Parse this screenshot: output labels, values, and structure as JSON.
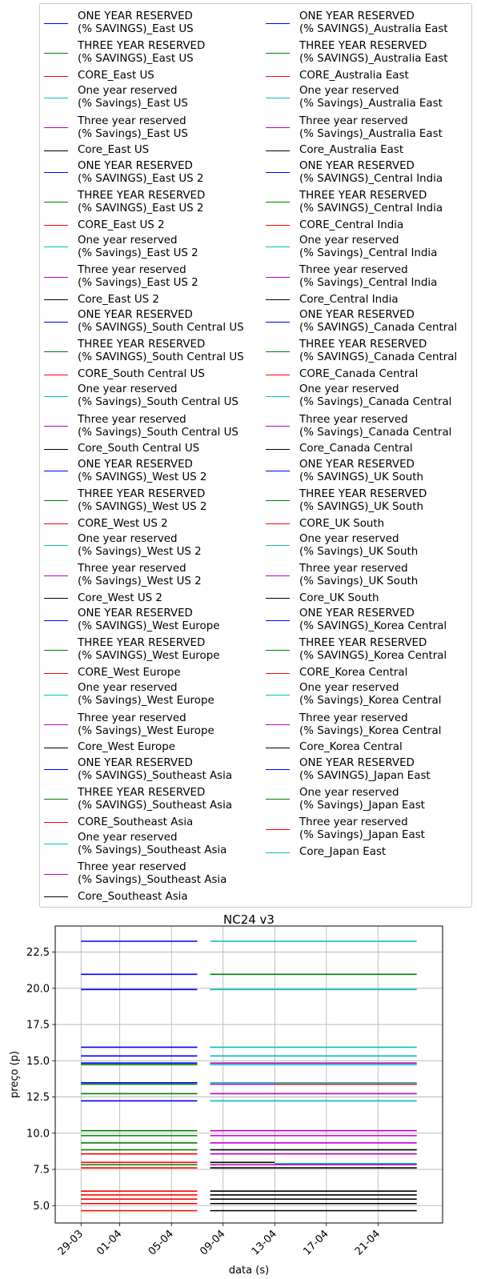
{
  "chart_data": {
    "type": "line",
    "title": "NC24 v3",
    "xlabel": "data (s)",
    "ylabel": "preço (p)",
    "ylim": [
      3.8,
      24.3
    ],
    "yticks": [
      5.0,
      7.5,
      10.0,
      12.5,
      15.0,
      17.5,
      20.0,
      22.5
    ],
    "ytick_labels": [
      "5.0",
      "7.5",
      "10.0",
      "12.5",
      "15.0",
      "17.5",
      "20.0",
      "22.5"
    ],
    "xlim": [
      "2018-03-27",
      "2018-04-26"
    ],
    "xticks": [
      "2018-03-29",
      "2018-04-01",
      "2018-04-05",
      "2018-04-09",
      "2018-04-13",
      "2018-04-17",
      "2018-04-21"
    ],
    "xtick_labels": [
      "29-03",
      "01-04",
      "05-04",
      "09-04",
      "13-04",
      "17-04",
      "21-04"
    ],
    "grid": true,
    "legend_position": "top",
    "legend_columns": 2,
    "colors": {
      "b": "#0000ff",
      "g": "#008000",
      "r": "#ff0000",
      "c": "#00bfbf",
      "m": "#bf00bf",
      "k": "#000000"
    },
    "segments": [
      {
        "color": "b",
        "y": 23.25,
        "x": [
          "2018-03-29",
          "2018-04-07"
        ]
      },
      {
        "color": "b",
        "y": 20.97,
        "x": [
          "2018-03-29",
          "2018-04-07"
        ]
      },
      {
        "color": "b",
        "y": 19.92,
        "x": [
          "2018-03-29",
          "2018-04-07"
        ]
      },
      {
        "color": "b",
        "y": 15.93,
        "x": [
          "2018-03-29",
          "2018-04-07"
        ]
      },
      {
        "color": "b",
        "y": 15.33,
        "x": [
          "2018-03-29",
          "2018-04-07"
        ]
      },
      {
        "color": "b",
        "y": 14.84,
        "x": [
          "2018-03-29",
          "2018-04-07"
        ]
      },
      {
        "color": "g",
        "y": 14.73,
        "x": [
          "2018-03-29",
          "2018-04-07"
        ]
      },
      {
        "color": "b",
        "y": 13.48,
        "x": [
          "2018-03-29",
          "2018-04-07"
        ]
      },
      {
        "color": "g",
        "y": 13.38,
        "x": [
          "2018-03-29",
          "2018-04-07"
        ]
      },
      {
        "color": "g",
        "y": 12.73,
        "x": [
          "2018-03-29",
          "2018-04-07"
        ]
      },
      {
        "color": "b",
        "y": 12.23,
        "x": [
          "2018-03-29",
          "2018-04-07"
        ]
      },
      {
        "color": "g",
        "y": 10.17,
        "x": [
          "2018-03-29",
          "2018-04-07"
        ]
      },
      {
        "color": "g",
        "y": 9.83,
        "x": [
          "2018-03-29",
          "2018-04-07"
        ]
      },
      {
        "color": "g",
        "y": 9.33,
        "x": [
          "2018-03-29",
          "2018-04-07"
        ]
      },
      {
        "color": "g",
        "y": 8.85,
        "x": [
          "2018-03-29",
          "2018-04-07"
        ]
      },
      {
        "color": "r",
        "y": 8.57,
        "x": [
          "2018-03-29",
          "2018-04-07"
        ]
      },
      {
        "color": "r",
        "y": 7.98,
        "x": [
          "2018-03-29",
          "2018-04-07"
        ]
      },
      {
        "color": "g",
        "y": 7.82,
        "x": [
          "2018-03-29",
          "2018-04-07"
        ]
      },
      {
        "color": "r",
        "y": 7.6,
        "x": [
          "2018-03-29",
          "2018-04-07"
        ]
      },
      {
        "color": "r",
        "y": 6.0,
        "x": [
          "2018-03-29",
          "2018-04-07"
        ]
      },
      {
        "color": "r",
        "y": 5.74,
        "x": [
          "2018-03-29",
          "2018-04-07"
        ]
      },
      {
        "color": "r",
        "y": 5.45,
        "x": [
          "2018-03-29",
          "2018-04-07"
        ]
      },
      {
        "color": "r",
        "y": 5.14,
        "x": [
          "2018-03-29",
          "2018-04-07"
        ]
      },
      {
        "color": "r",
        "y": 4.65,
        "x": [
          "2018-03-29",
          "2018-04-07"
        ]
      },
      {
        "color": "c",
        "y": 23.25,
        "x": [
          "2018-04-08",
          "2018-04-24"
        ]
      },
      {
        "color": "g",
        "y": 20.97,
        "x": [
          "2018-04-08",
          "2018-04-24"
        ]
      },
      {
        "color": "c",
        "y": 19.92,
        "x": [
          "2018-04-08",
          "2018-04-24"
        ]
      },
      {
        "color": "c",
        "y": 15.93,
        "x": [
          "2018-04-08",
          "2018-04-24"
        ]
      },
      {
        "color": "c",
        "y": 15.33,
        "x": [
          "2018-04-08",
          "2018-04-24"
        ]
      },
      {
        "color": "m",
        "y": 14.84,
        "x": [
          "2018-04-08",
          "2018-04-24"
        ]
      },
      {
        "color": "c",
        "y": 14.73,
        "x": [
          "2018-04-08",
          "2018-04-24"
        ]
      },
      {
        "color": "c",
        "y": 13.48,
        "x": [
          "2018-04-08",
          "2018-04-24"
        ]
      },
      {
        "color": "m",
        "y": 13.38,
        "x": [
          "2018-04-08",
          "2018-04-13"
        ]
      },
      {
        "color": "r",
        "y": 13.38,
        "x": [
          "2018-04-13",
          "2018-04-24"
        ]
      },
      {
        "color": "m",
        "y": 12.73,
        "x": [
          "2018-04-08",
          "2018-04-24"
        ]
      },
      {
        "color": "c",
        "y": 12.23,
        "x": [
          "2018-04-08",
          "2018-04-24"
        ]
      },
      {
        "color": "m",
        "y": 10.17,
        "x": [
          "2018-04-08",
          "2018-04-24"
        ]
      },
      {
        "color": "m",
        "y": 9.83,
        "x": [
          "2018-04-08",
          "2018-04-24"
        ]
      },
      {
        "color": "m",
        "y": 9.33,
        "x": [
          "2018-04-08",
          "2018-04-24"
        ]
      },
      {
        "color": "k",
        "y": 8.85,
        "x": [
          "2018-04-08",
          "2018-04-24"
        ]
      },
      {
        "color": "m",
        "y": 8.57,
        "x": [
          "2018-04-08",
          "2018-04-24"
        ]
      },
      {
        "color": "k",
        "y": 7.98,
        "x": [
          "2018-04-08",
          "2018-04-13"
        ]
      },
      {
        "color": "c",
        "y": 7.9,
        "x": [
          "2018-04-13",
          "2018-04-24"
        ]
      },
      {
        "color": "m",
        "y": 7.82,
        "x": [
          "2018-04-08",
          "2018-04-24"
        ]
      },
      {
        "color": "k",
        "y": 7.6,
        "x": [
          "2018-04-08",
          "2018-04-24"
        ]
      },
      {
        "color": "k",
        "y": 6.0,
        "x": [
          "2018-04-08",
          "2018-04-24"
        ]
      },
      {
        "color": "k",
        "y": 5.74,
        "x": [
          "2018-04-08",
          "2018-04-24"
        ]
      },
      {
        "color": "k",
        "y": 5.45,
        "x": [
          "2018-04-08",
          "2018-04-24"
        ]
      },
      {
        "color": "k",
        "y": 5.14,
        "x": [
          "2018-04-08",
          "2018-04-24"
        ]
      },
      {
        "color": "k",
        "y": 4.65,
        "x": [
          "2018-04-08",
          "2018-04-24"
        ]
      }
    ],
    "legend": [
      {
        "color": "b",
        "label": "ONE YEAR RESERVED\n(% SAVINGS)_East US"
      },
      {
        "color": "g",
        "label": "THREE YEAR RESERVED\n(% SAVINGS)_East US"
      },
      {
        "color": "r",
        "label": "CORE_East US"
      },
      {
        "color": "c",
        "label": "One year reserved\n(% Savings)_East US"
      },
      {
        "color": "m",
        "label": "Three year reserved\n(% Savings)_East US"
      },
      {
        "color": "k",
        "label": "Core_East US"
      },
      {
        "color": "b",
        "label": "ONE YEAR RESERVED\n(% SAVINGS)_East US 2"
      },
      {
        "color": "g",
        "label": "THREE YEAR RESERVED\n(% SAVINGS)_East US 2"
      },
      {
        "color": "r",
        "label": "CORE_East US 2"
      },
      {
        "color": "c",
        "label": "One year reserved\n(% Savings)_East US 2"
      },
      {
        "color": "m",
        "label": "Three year reserved\n(% Savings)_East US 2"
      },
      {
        "color": "k",
        "label": "Core_East US 2"
      },
      {
        "color": "b",
        "label": "ONE YEAR RESERVED\n(% SAVINGS)_South Central US"
      },
      {
        "color": "g",
        "label": "THREE YEAR RESERVED\n(% SAVINGS)_South Central US"
      },
      {
        "color": "r",
        "label": "CORE_South Central US"
      },
      {
        "color": "c",
        "label": "One year reserved\n(% Savings)_South Central US"
      },
      {
        "color": "m",
        "label": "Three year reserved\n(% Savings)_South Central US"
      },
      {
        "color": "k",
        "label": "Core_South Central US"
      },
      {
        "color": "b",
        "label": "ONE YEAR RESERVED\n(% SAVINGS)_West US 2"
      },
      {
        "color": "g",
        "label": "THREE YEAR RESERVED\n(% SAVINGS)_West US 2"
      },
      {
        "color": "r",
        "label": "CORE_West US 2"
      },
      {
        "color": "c",
        "label": "One year reserved\n(% Savings)_West US 2"
      },
      {
        "color": "m",
        "label": "Three year reserved\n(% Savings)_West US 2"
      },
      {
        "color": "k",
        "label": "Core_West US 2"
      },
      {
        "color": "b",
        "label": "ONE YEAR RESERVED\n(% SAVINGS)_West Europe"
      },
      {
        "color": "g",
        "label": "THREE YEAR RESERVED\n(% SAVINGS)_West Europe"
      },
      {
        "color": "r",
        "label": "CORE_West Europe"
      },
      {
        "color": "c",
        "label": "One year reserved\n(% Savings)_West Europe"
      },
      {
        "color": "m",
        "label": "Three year reserved\n(% Savings)_West Europe"
      },
      {
        "color": "k",
        "label": "Core_West Europe"
      },
      {
        "color": "b",
        "label": "ONE YEAR RESERVED\n(% SAVINGS)_Southeast Asia"
      },
      {
        "color": "g",
        "label": "THREE YEAR RESERVED\n(% SAVINGS)_Southeast Asia"
      },
      {
        "color": "r",
        "label": "CORE_Southeast Asia"
      },
      {
        "color": "c",
        "label": "One year reserved\n(% Savings)_Southeast Asia"
      },
      {
        "color": "m",
        "label": "Three year reserved\n(% Savings)_Southeast Asia"
      },
      {
        "color": "k",
        "label": "Core_Southeast Asia"
      },
      {
        "color": "b",
        "label": "ONE YEAR RESERVED\n(% SAVINGS)_Australia East"
      },
      {
        "color": "g",
        "label": "THREE YEAR RESERVED\n(% SAVINGS)_Australia East"
      },
      {
        "color": "r",
        "label": "CORE_Australia East"
      },
      {
        "color": "c",
        "label": "One year reserved\n(% Savings)_Australia East"
      },
      {
        "color": "m",
        "label": "Three year reserved\n(% Savings)_Australia East"
      },
      {
        "color": "k",
        "label": "Core_Australia East"
      },
      {
        "color": "b",
        "label": "ONE YEAR RESERVED\n(% SAVINGS)_Central India"
      },
      {
        "color": "g",
        "label": "THREE YEAR RESERVED\n(% SAVINGS)_Central India"
      },
      {
        "color": "r",
        "label": "CORE_Central India"
      },
      {
        "color": "c",
        "label": "One year reserved\n(% Savings)_Central India"
      },
      {
        "color": "m",
        "label": "Three year reserved\n(% Savings)_Central India"
      },
      {
        "color": "k",
        "label": "Core_Central India"
      },
      {
        "color": "b",
        "label": "ONE YEAR RESERVED\n(% SAVINGS)_Canada Central"
      },
      {
        "color": "g",
        "label": "THREE YEAR RESERVED\n(% SAVINGS)_Canada Central"
      },
      {
        "color": "r",
        "label": "CORE_Canada Central"
      },
      {
        "color": "c",
        "label": "One year reserved\n(% Savings)_Canada Central"
      },
      {
        "color": "m",
        "label": "Three year reserved\n(% Savings)_Canada Central"
      },
      {
        "color": "k",
        "label": "Core_Canada Central"
      },
      {
        "color": "b",
        "label": "ONE YEAR RESERVED\n(% SAVINGS)_UK South"
      },
      {
        "color": "g",
        "label": "THREE YEAR RESERVED\n(% SAVINGS)_UK South"
      },
      {
        "color": "r",
        "label": "CORE_UK South"
      },
      {
        "color": "c",
        "label": "One year reserved\n(% Savings)_UK South"
      },
      {
        "color": "m",
        "label": "Three year reserved\n(% Savings)_UK South"
      },
      {
        "color": "k",
        "label": "Core_UK South"
      },
      {
        "color": "b",
        "label": "ONE YEAR RESERVED\n(% SAVINGS)_Korea Central"
      },
      {
        "color": "g",
        "label": "THREE YEAR RESERVED\n(% SAVINGS)_Korea Central"
      },
      {
        "color": "r",
        "label": "CORE_Korea Central"
      },
      {
        "color": "c",
        "label": "One year reserved\n(% Savings)_Korea Central"
      },
      {
        "color": "m",
        "label": "Three year reserved\n(% Savings)_Korea Central"
      },
      {
        "color": "k",
        "label": "Core_Korea Central"
      },
      {
        "color": "b",
        "label": "ONE YEAR RESERVED\n(% SAVINGS)_Japan East"
      },
      {
        "color": "g",
        "label": "One year reserved\n(% Savings)_Japan East"
      },
      {
        "color": "r",
        "label": "Three year reserved\n(% Savings)_Japan East"
      },
      {
        "color": "c",
        "label": "Core_Japan East"
      }
    ]
  }
}
